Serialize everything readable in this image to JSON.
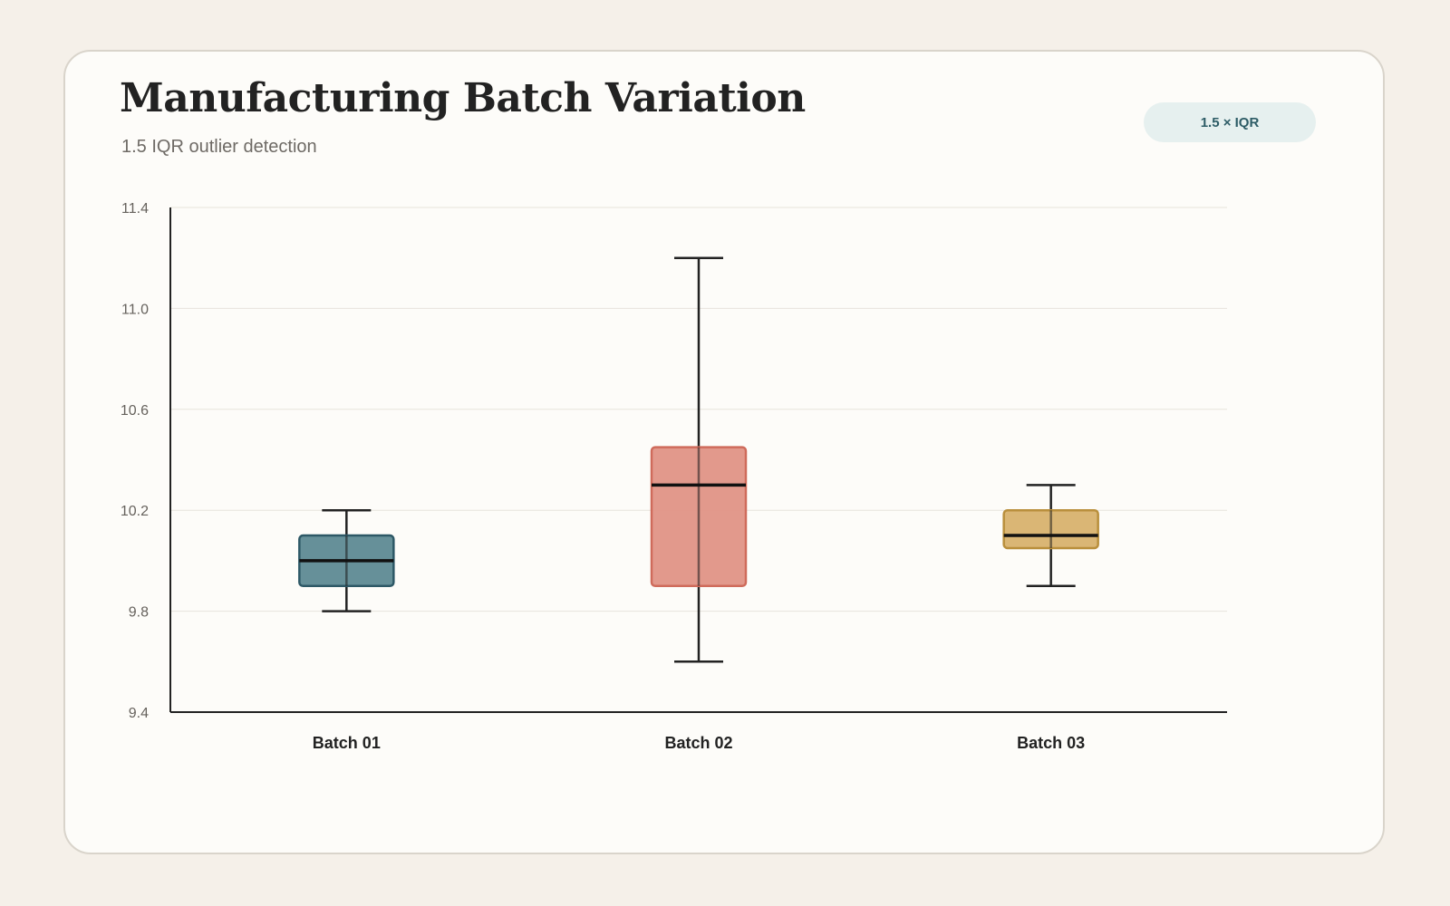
{
  "header": {
    "title": "Manufacturing Batch Variation",
    "subtitle": "1.5 IQR outlier detection",
    "badge": "1.5 × IQR"
  },
  "chart_data": {
    "type": "boxplot",
    "title": "Manufacturing Batch Variation",
    "subtitle": "1.5 IQR outlier detection",
    "xlabel": "",
    "ylabel": "",
    "ylim": [
      9.4,
      11.4
    ],
    "yticks": [
      9.4,
      9.8,
      10.2,
      10.6,
      11.0,
      11.4
    ],
    "ytick_labels": [
      "9.4",
      "9.8",
      "10.2",
      "10.6",
      "11.0",
      "11.4"
    ],
    "grid": true,
    "categories": [
      "Batch 01",
      "Batch 02",
      "Batch 03"
    ],
    "series": [
      {
        "category": "Batch 01",
        "min": 9.8,
        "q1": 9.9,
        "median": 10.0,
        "q3": 10.1,
        "max": 10.2,
        "fill": "#5e8a94",
        "stroke": "#2d5866"
      },
      {
        "category": "Batch 02",
        "min": 9.6,
        "q1": 9.9,
        "median": 10.3,
        "q3": 10.45,
        "max": 11.2,
        "fill": "#e09486",
        "stroke": "#cf6b5b"
      },
      {
        "category": "Batch 03",
        "min": 9.9,
        "q1": 10.05,
        "median": 10.1,
        "q3": 10.2,
        "max": 10.3,
        "fill": "#d8b26e",
        "stroke": "#b98f3c"
      }
    ],
    "colors": {
      "grid": "#e7e3dc",
      "axis": "#222222",
      "whisker": "#222222",
      "median": "#111111"
    }
  }
}
